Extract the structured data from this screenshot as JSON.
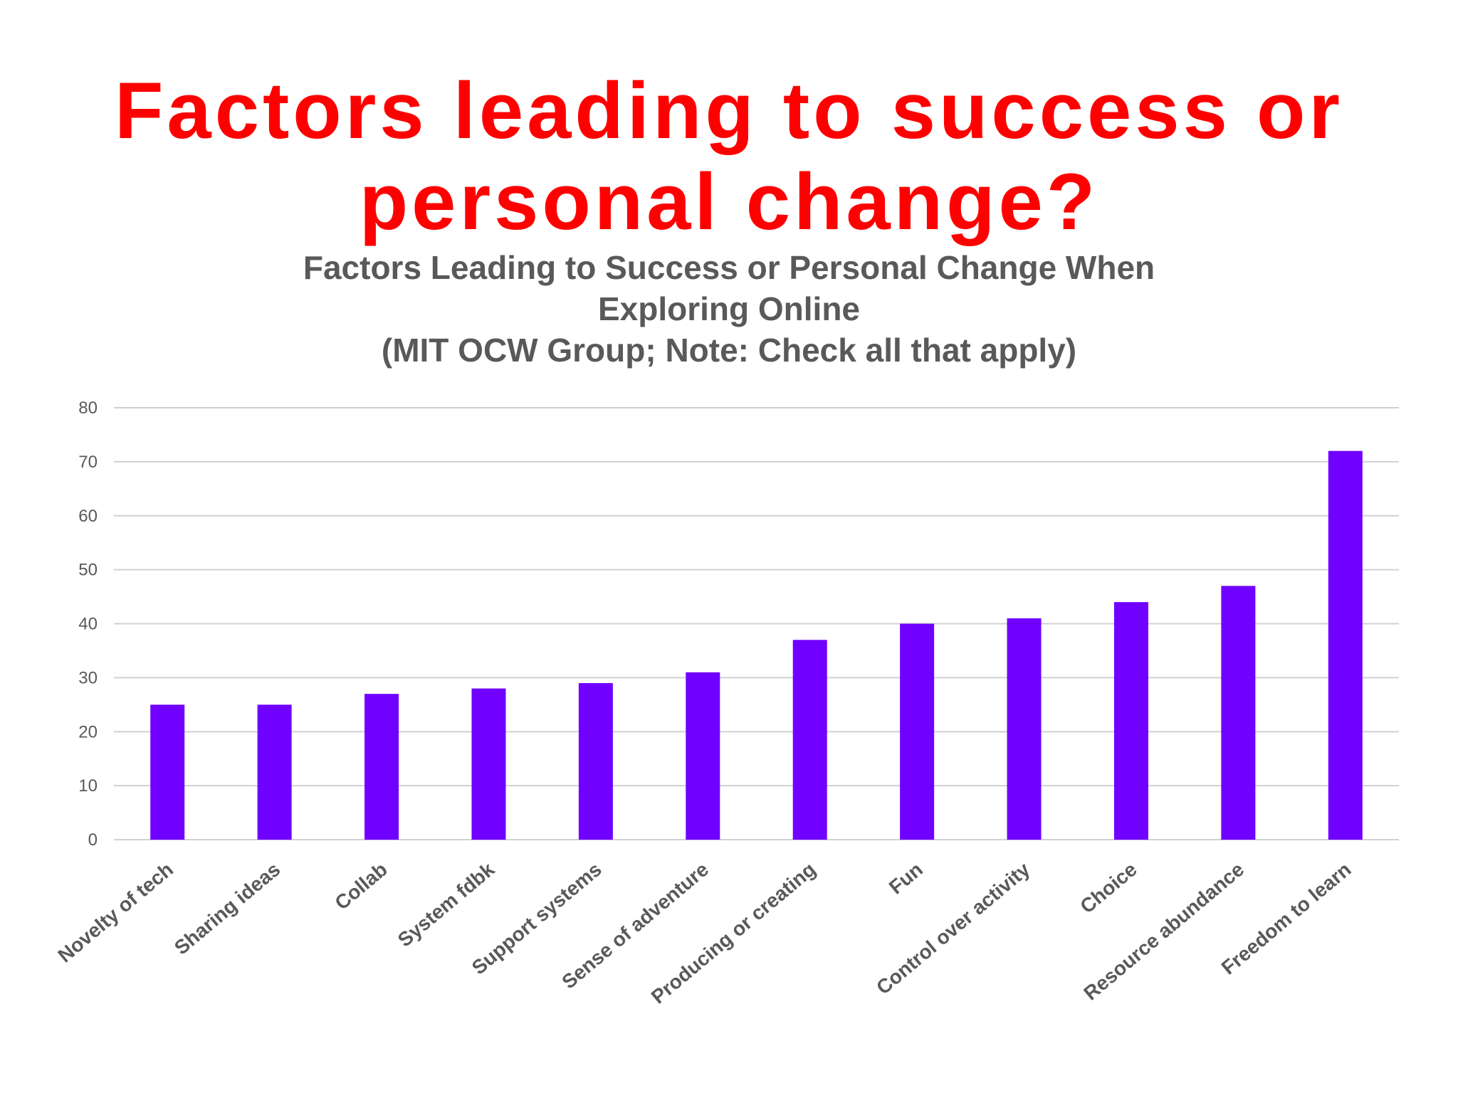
{
  "slide": {
    "title_line1": "Factors leading to success or",
    "title_line2": "personal change?"
  },
  "chart_data": {
    "type": "bar",
    "title_lines": [
      "Factors Leading to Success or Personal Change When",
      "Exploring Online",
      "(MIT OCW Group; Note: Check all that apply)"
    ],
    "categories": [
      "Novelty of tech",
      "Sharing ideas",
      "Collab",
      "System fdbk",
      "Support systems",
      "Sense of adventure",
      "Producing or creating",
      "Fun",
      "Control over activity",
      "Choice",
      "Resource abundance",
      "Freedom to learn"
    ],
    "values": [
      25,
      25,
      27,
      28,
      29,
      31,
      37,
      40,
      41,
      44,
      47,
      72
    ],
    "ylim": [
      0,
      80
    ],
    "yticks": [
      0,
      10,
      20,
      30,
      40,
      50,
      60,
      70,
      80
    ],
    "grid": true,
    "xlabel": "",
    "ylabel": "",
    "bar_color": "#7000ff",
    "grid_color": "#d0d0d0"
  }
}
